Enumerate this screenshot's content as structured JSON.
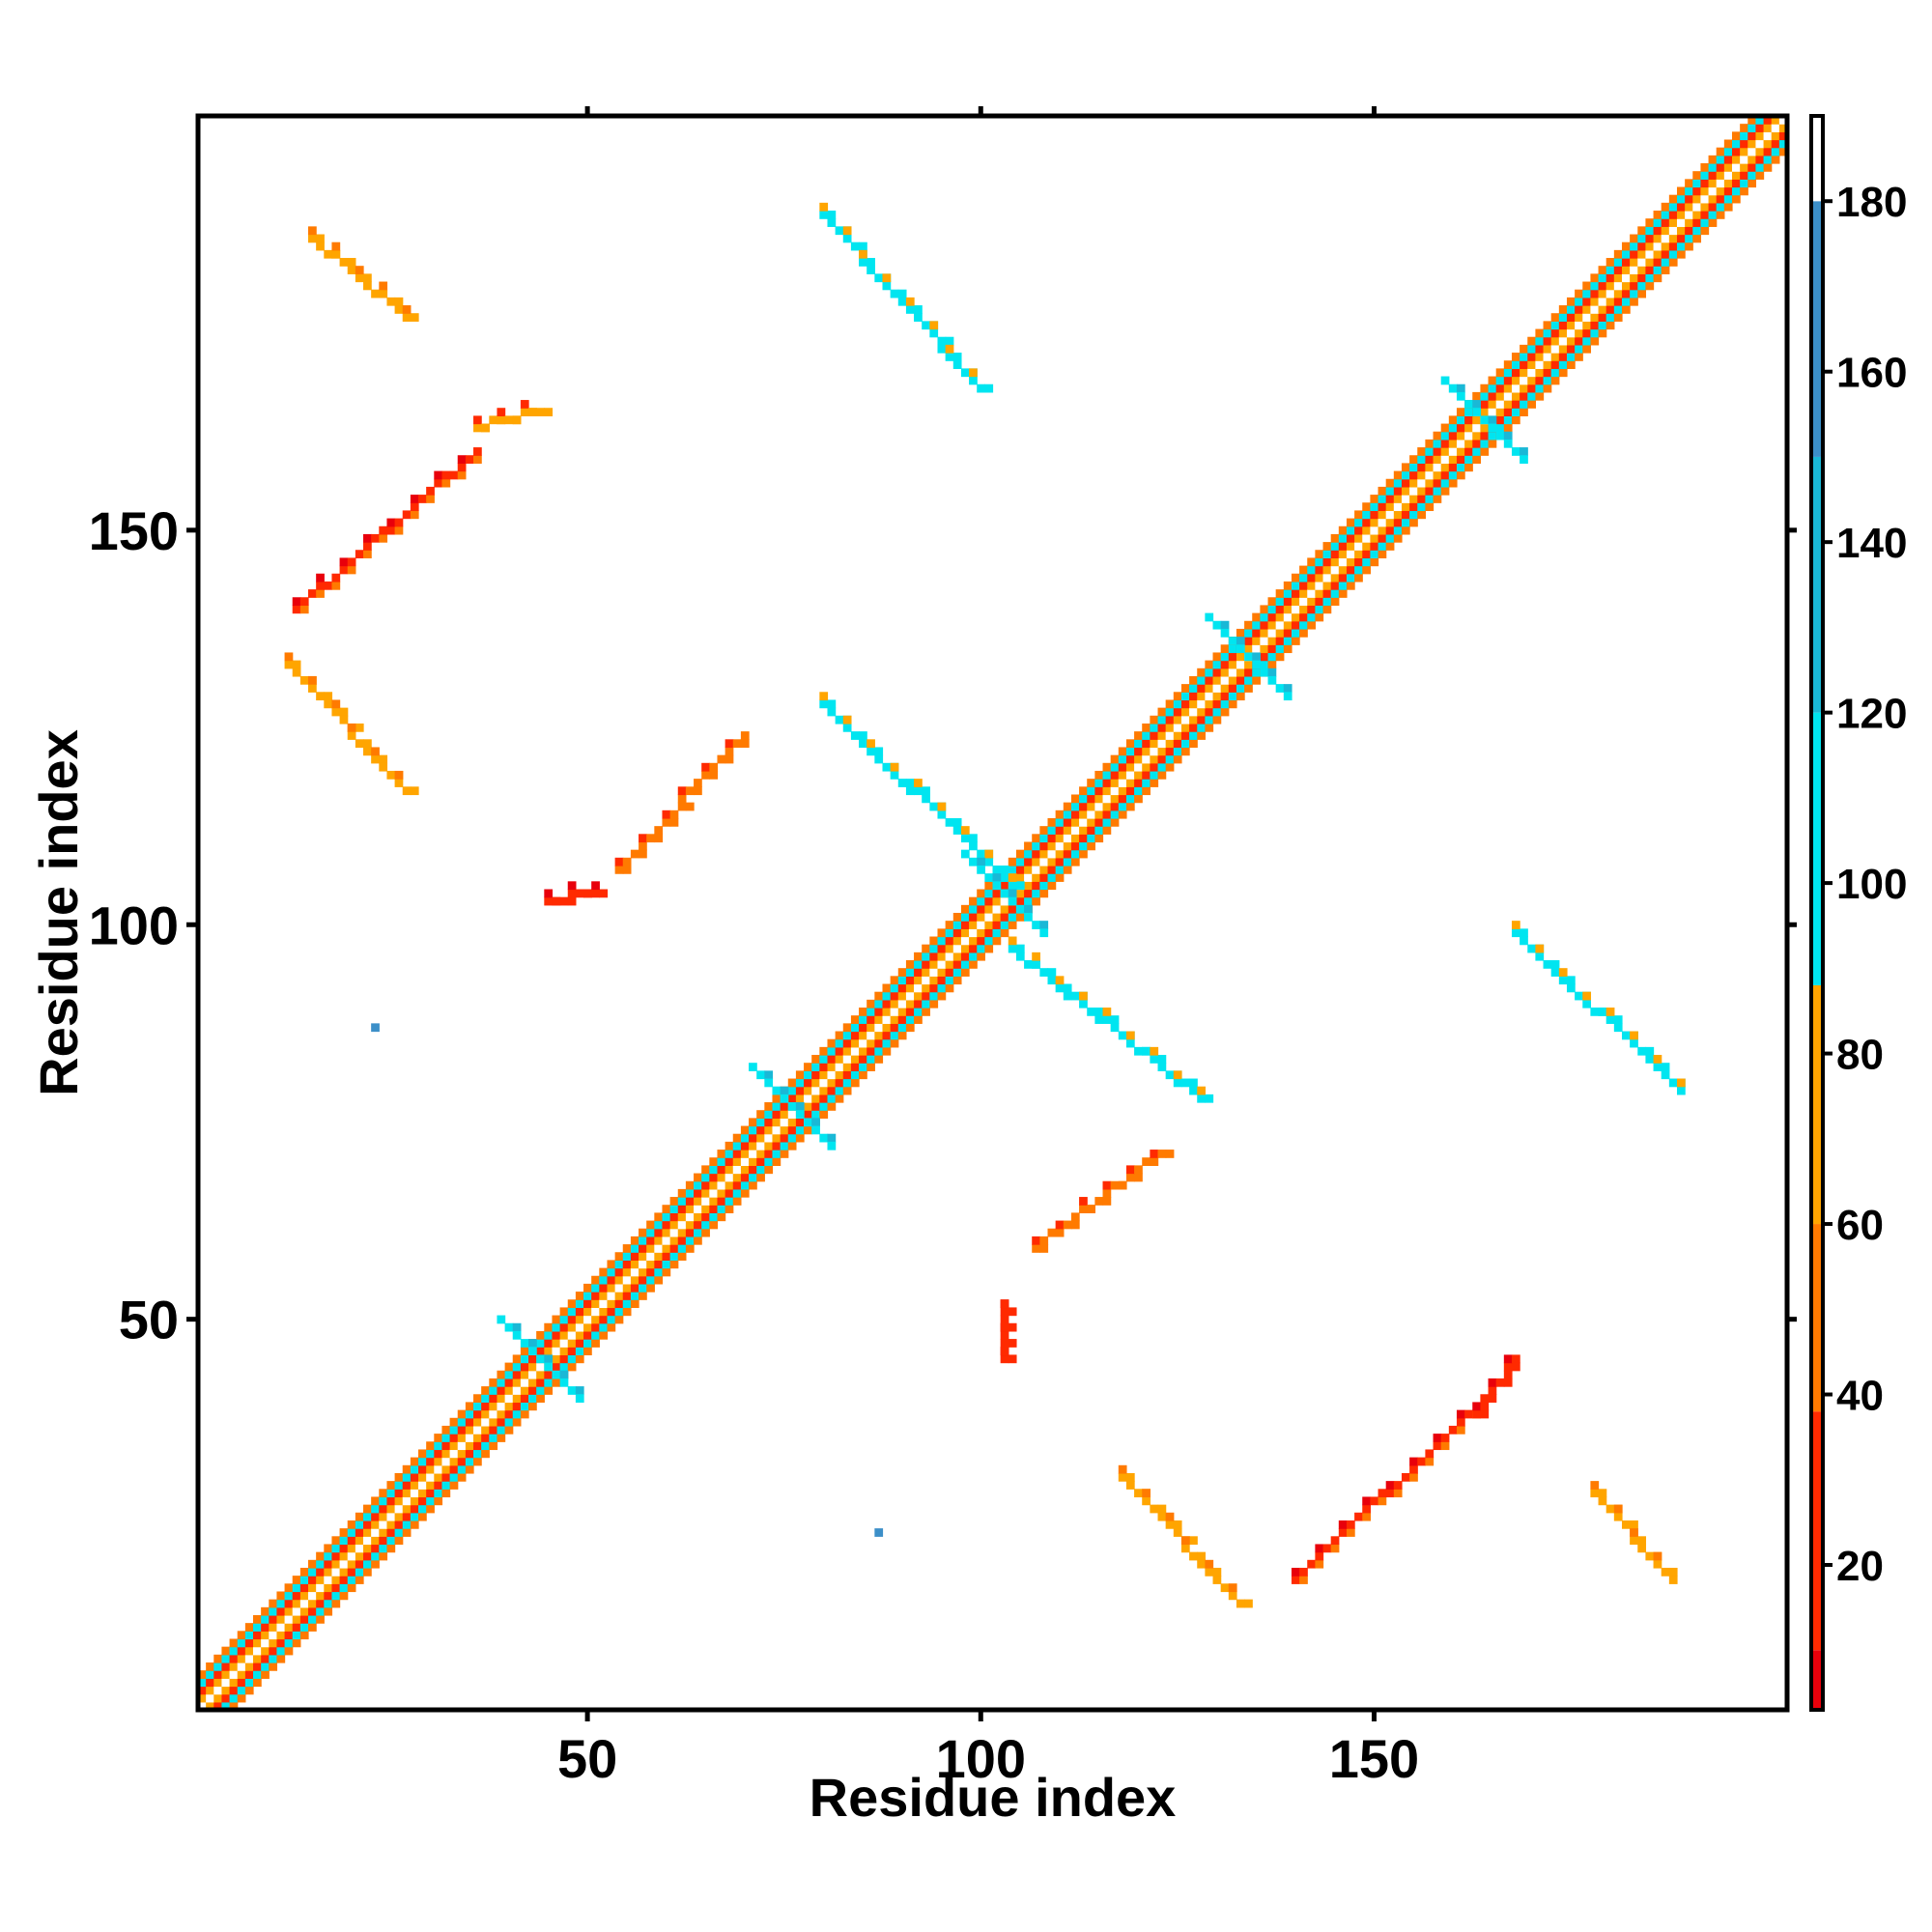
{
  "chart_data": {
    "type": "heatmap",
    "title": "",
    "xlabel": "Residue index",
    "ylabel": "Residue index",
    "xlim": [
      1,
      202
    ],
    "ylim": [
      1,
      202
    ],
    "x_ticks": [
      50,
      100,
      150
    ],
    "y_ticks": [
      50,
      100,
      150
    ],
    "colorbar": {
      "range": [
        3,
        190
      ],
      "ticks": [
        20,
        40,
        60,
        80,
        100,
        120,
        140,
        160,
        180
      ],
      "bands": [
        {
          "from": 3,
          "to": 10,
          "color": "#e8000b"
        },
        {
          "from": 10,
          "to": 38,
          "color": "#ff2a00"
        },
        {
          "from": 38,
          "to": 60,
          "color": "#ff7a00"
        },
        {
          "from": 60,
          "to": 88,
          "color": "#ffa500"
        },
        {
          "from": 88,
          "to": 120,
          "color": "#00e5f0"
        },
        {
          "from": 120,
          "to": 150,
          "color": "#1ab8d6"
        },
        {
          "from": 150,
          "to": 180,
          "color": "#3c8fc8"
        },
        {
          "from": 180,
          "to": 190,
          "color": "#ffffff"
        }
      ]
    },
    "diagonal": {
      "from": 1,
      "to": 202,
      "bands": [
        {
          "offset": 1,
          "value": 180,
          "note": "white center"
        },
        {
          "offset": 2,
          "value": 70
        },
        {
          "offset": 3,
          "value": 30
        },
        {
          "offset": 4,
          "value": 95
        },
        {
          "offset": 5,
          "value": 55
        }
      ]
    },
    "segments": [
      {
        "from": [
          15,
          187
        ],
        "to": [
          27,
          177
        ],
        "value": 70
      },
      {
        "from": [
          13,
          140
        ],
        "to": [
          36,
          160
        ],
        "value": 35
      },
      {
        "from": [
          36,
          163
        ],
        "to": [
          44,
          165
        ],
        "value": 60
      },
      {
        "from": [
          12,
          133
        ],
        "to": [
          27,
          117
        ],
        "value": 70
      },
      {
        "from": [
          45,
          103
        ],
        "to": [
          51,
          104
        ],
        "value": 25
      },
      {
        "from": [
          54,
          107
        ],
        "to": [
          70,
          124
        ],
        "value": 40
      },
      {
        "from": [
          80,
          190
        ],
        "to": [
          100,
          168
        ],
        "value": 100
      },
      {
        "from": [
          80,
          128
        ],
        "to": [
          104,
          105
        ],
        "value": 105
      },
      {
        "from": [
          104,
          97
        ],
        "to": [
          128,
          78
        ],
        "value": 105
      },
      {
        "from": [
          107,
          59
        ],
        "to": [
          123,
          71
        ],
        "value": 40
      },
      {
        "from": [
          103,
          45
        ],
        "to": [
          103,
          52
        ],
        "value": 25
      },
      {
        "from": [
          168,
          99
        ],
        "to": [
          189,
          79
        ],
        "value": 100
      },
      {
        "from": [
          118,
          30
        ],
        "to": [
          133,
          14
        ],
        "value": 80
      },
      {
        "from": [
          140,
          17
        ],
        "to": [
          162,
          38
        ],
        "value": 35
      },
      {
        "from": [
          163,
          38
        ],
        "to": [
          168,
          45
        ],
        "value": 20
      },
      {
        "from": [
          178,
          28
        ],
        "to": [
          188,
          17
        ],
        "value": 70
      }
    ],
    "crossings": [
      {
        "at": [
          44,
          45
        ],
        "value": 100
      },
      {
        "at": [
          76,
          77
        ],
        "value": 100
      },
      {
        "at": [
          103,
          104
        ],
        "value": 100
      },
      {
        "at": [
          134,
          134
        ],
        "value": 100
      },
      {
        "at": [
          164,
          164
        ],
        "value": 100
      }
    ],
    "isolated": [
      {
        "at": [
          23,
          87
        ],
        "value": 150
      },
      {
        "at": [
          87,
          23
        ],
        "value": 150
      }
    ]
  }
}
